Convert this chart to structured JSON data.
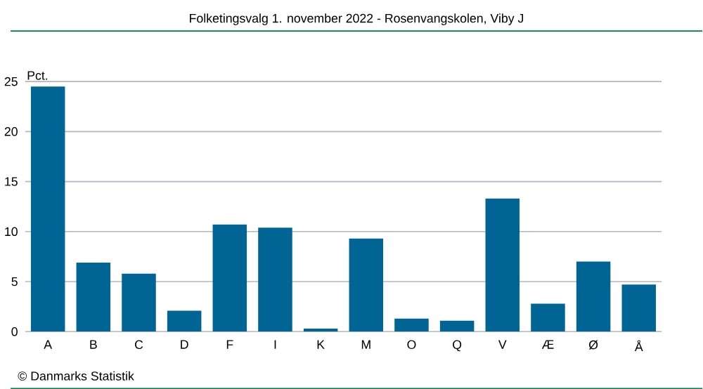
{
  "chart_data": {
    "type": "bar",
    "title": "Folketingsvalg 1. november 2022 - Rosenvangskolen, Viby J",
    "ylabel": "Pct.",
    "annotations": [
      "© Danmarks Statistik"
    ],
    "categories": [
      "A",
      "B",
      "C",
      "D",
      "F",
      "I",
      "K",
      "M",
      "O",
      "Q",
      "V",
      "Æ",
      "Ø",
      "Å"
    ],
    "values": [
      24.5,
      6.9,
      5.8,
      2.1,
      10.7,
      10.4,
      0.3,
      9.3,
      1.3,
      1.1,
      13.3,
      2.8,
      7.0,
      4.7
    ],
    "color": "#006494",
    "ylim": [
      0,
      25
    ],
    "yticks": [
      0,
      5,
      10,
      15,
      20,
      25
    ],
    "grid": "y"
  }
}
